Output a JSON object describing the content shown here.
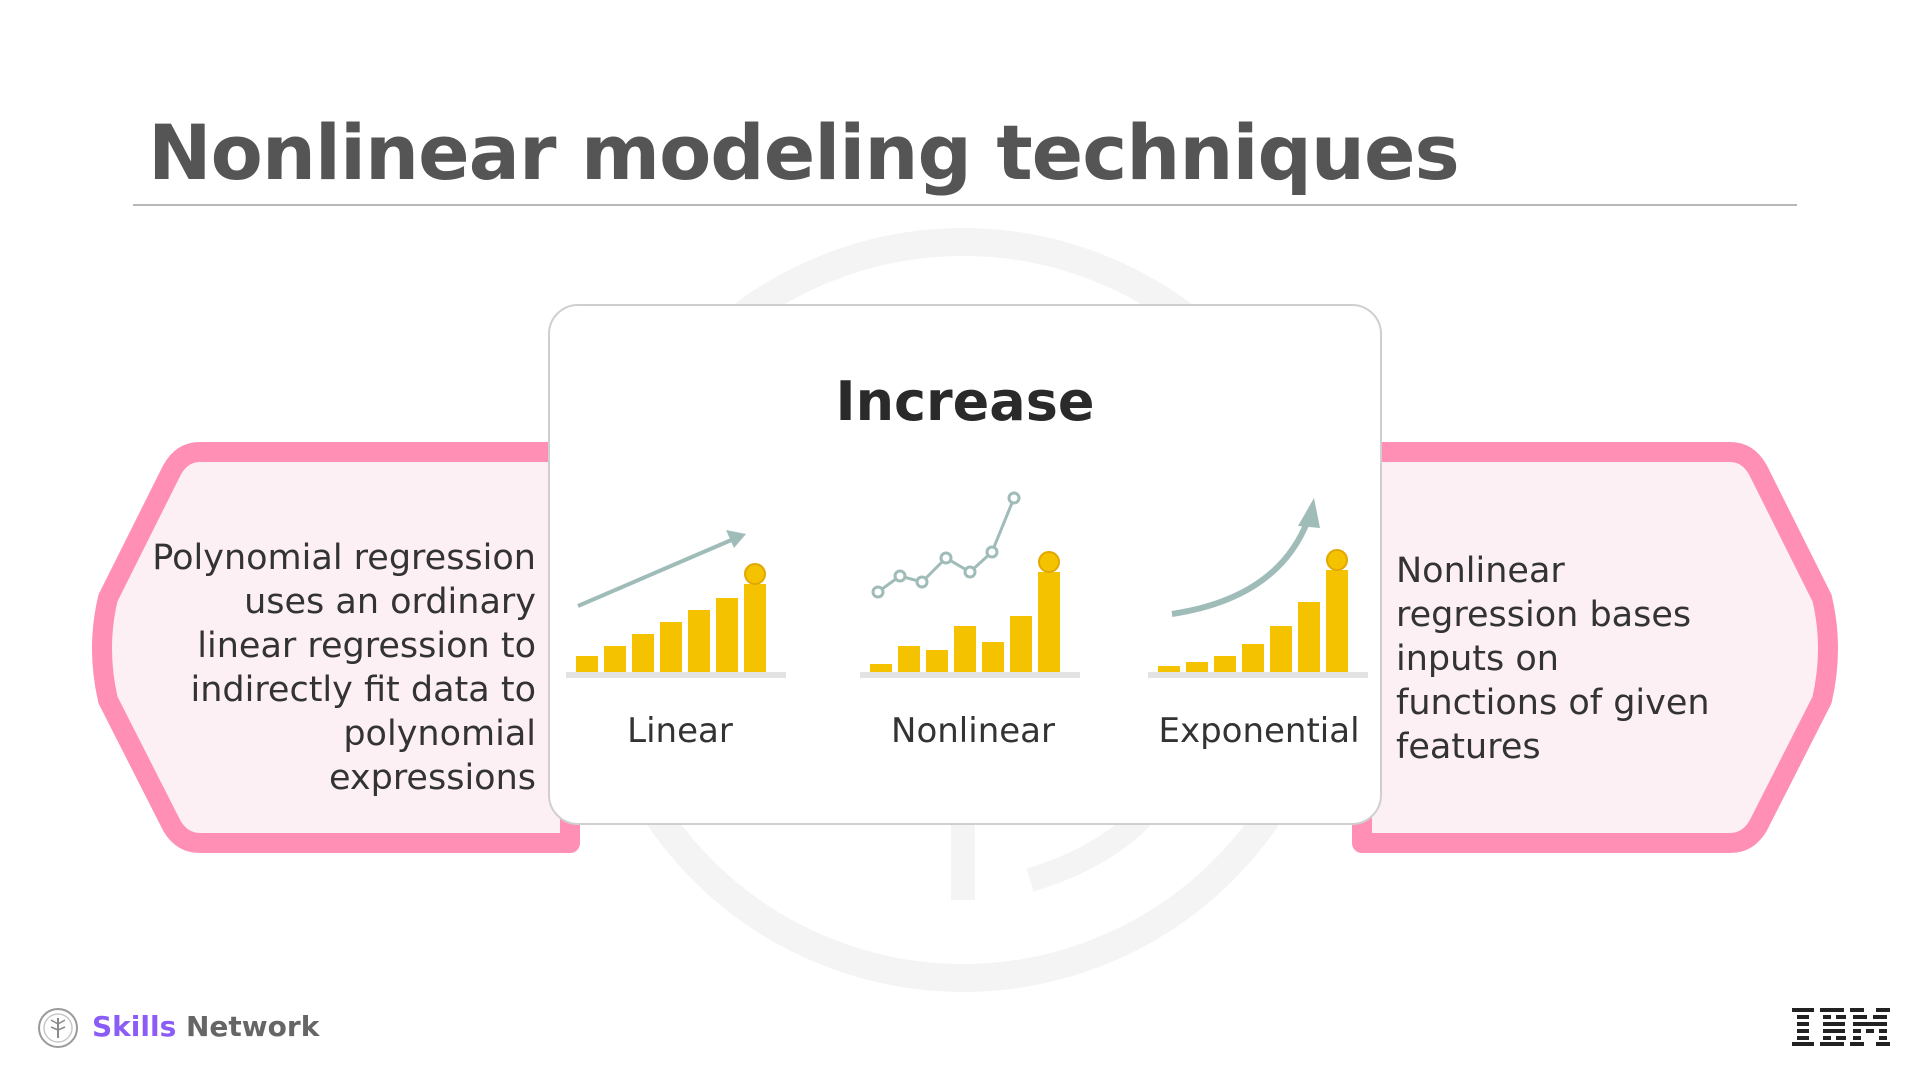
{
  "slide": {
    "title": "Nonlinear modeling techniques"
  },
  "left_panel": {
    "text": "Polynomial regression uses an ordinary linear regression to indirectly fit data to polynomial expressions"
  },
  "right_panel": {
    "text": "Nonlinear regression bases inputs on functions of given features"
  },
  "center_card": {
    "title": "Increase",
    "charts": [
      {
        "label": "Linear",
        "icon": "linear-growth-chart-icon"
      },
      {
        "label": "Nonlinear",
        "icon": "nonlinear-growth-chart-icon"
      },
      {
        "label": "Exponential",
        "icon": "exponential-growth-chart-icon"
      }
    ]
  },
  "footer": {
    "brand_primary": "Skills",
    "brand_secondary": "Network",
    "logo_icon": "skills-network-tree-icon",
    "corporate_logo": "IBM"
  },
  "colors": {
    "accent_pink": "#ff8fb5",
    "panel_fill": "#fdf0f5",
    "coin_gold": "#f5c200",
    "trend_gray": "#9fbcb8",
    "title_gray": "#555555",
    "brand_purple": "#8b5cf6"
  }
}
